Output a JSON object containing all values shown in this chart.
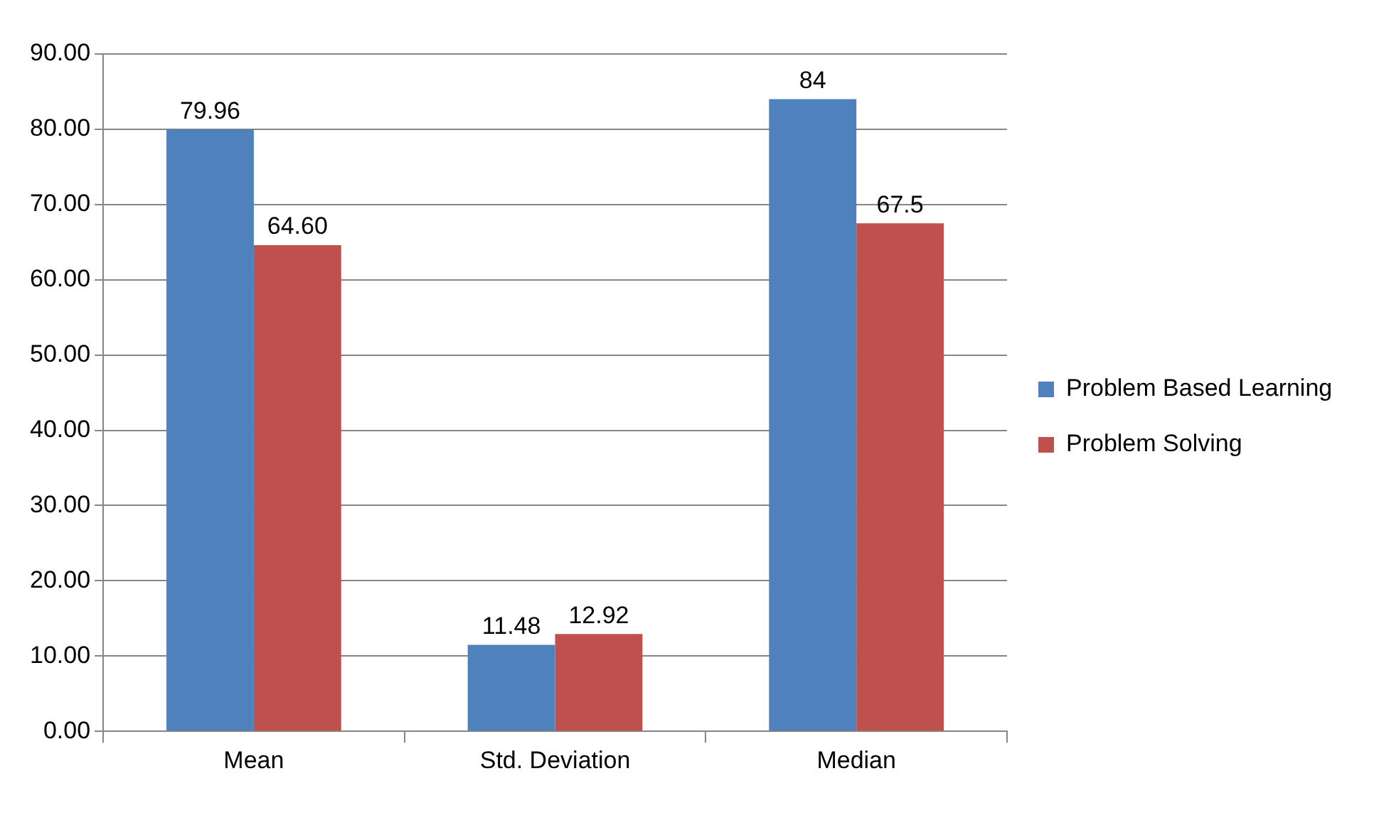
{
  "chart_data": {
    "type": "bar",
    "categories": [
      "Mean",
      "Std. Deviation",
      "Median"
    ],
    "series": [
      {
        "name": "Problem Based Learning",
        "color": "#4f81bd",
        "values": [
          79.96,
          11.48,
          84
        ],
        "value_labels": [
          "79.96",
          "11.48",
          "84"
        ]
      },
      {
        "name": "Problem Solving",
        "color": "#c0504d",
        "values": [
          64.6,
          12.92,
          67.5
        ],
        "value_labels": [
          "64.60",
          "12.92",
          "67.5"
        ]
      }
    ],
    "ylim": [
      0,
      90
    ],
    "yticks": [
      {
        "value": 0,
        "label": "0.00"
      },
      {
        "value": 10,
        "label": "10.00"
      },
      {
        "value": 20,
        "label": "20.00"
      },
      {
        "value": 30,
        "label": "30.00"
      },
      {
        "value": 40,
        "label": "40.00"
      },
      {
        "value": 50,
        "label": "50.00"
      },
      {
        "value": 60,
        "label": "60.00"
      },
      {
        "value": 70,
        "label": "70.00"
      },
      {
        "value": 80,
        "label": "80.00"
      },
      {
        "value": 90,
        "label": "90.00"
      }
    ],
    "grid": "y",
    "legend": "right"
  }
}
